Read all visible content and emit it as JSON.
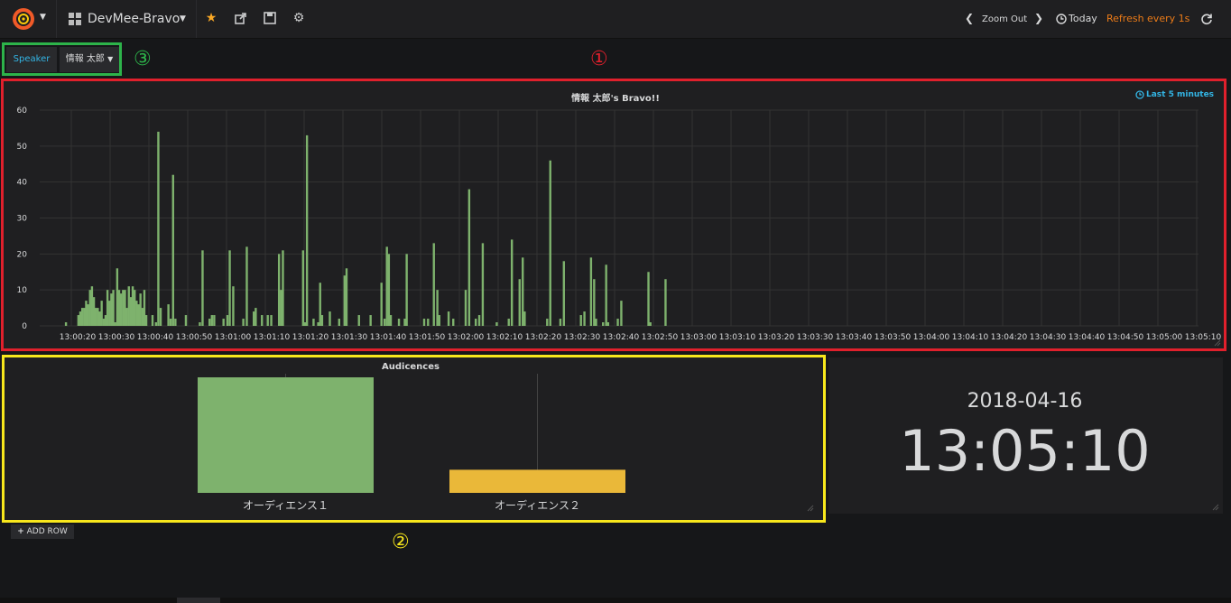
{
  "topbar": {
    "dashboard_title": "DevMee-Bravo",
    "zoom_out": "Zoom Out",
    "time_label": "Today",
    "refresh_label": "Refresh every 1s"
  },
  "variables": {
    "label": "Speaker",
    "value": "情報 太郎"
  },
  "annotations": [
    "①",
    "②",
    "③"
  ],
  "graph_panel": {
    "title": "情報 太郎's Bravo!!",
    "time_info": "Last 5 minutes",
    "chart_data": {
      "type": "bar",
      "title": "情報 太郎's Bravo!!",
      "ylim": [
        0,
        60
      ],
      "y_ticks": [
        "0",
        "10",
        "20",
        "30",
        "40",
        "50",
        "60"
      ],
      "x_ticks": [
        "13:00:20",
        "13:00:30",
        "13:00:40",
        "13:00:50",
        "13:01:00",
        "13:01:10",
        "13:01:20",
        "13:01:30",
        "13:01:40",
        "13:01:50",
        "13:02:00",
        "13:02:10",
        "13:02:20",
        "13:02:30",
        "13:02:40",
        "13:02:50",
        "13:03:00",
        "13:03:10",
        "13:03:20",
        "13:03:30",
        "13:03:40",
        "13:03:50",
        "13:04:00",
        "13:04:10",
        "13:04:20",
        "13:04:30",
        "13:04:40",
        "13:04:50",
        "13:05:00",
        "13:05:10"
      ],
      "x_start_label": "13:00:20",
      "color": "#7eb26d",
      "bars": [
        {
          "t": -3,
          "v": 1
        },
        {
          "t": 0.2,
          "v": 3
        },
        {
          "t": 0.7,
          "v": 4
        },
        {
          "t": 1.2,
          "v": 5
        },
        {
          "t": 1.7,
          "v": 5
        },
        {
          "t": 2.2,
          "v": 7
        },
        {
          "t": 2.7,
          "v": 6
        },
        {
          "t": 3.2,
          "v": 10
        },
        {
          "t": 3.7,
          "v": 11
        },
        {
          "t": 4.2,
          "v": 8
        },
        {
          "t": 4.7,
          "v": 5
        },
        {
          "t": 5.2,
          "v": 5
        },
        {
          "t": 5.7,
          "v": 4
        },
        {
          "t": 6.2,
          "v": 7
        },
        {
          "t": 6.7,
          "v": 2
        },
        {
          "t": 7.2,
          "v": 3
        },
        {
          "t": 7.7,
          "v": 10
        },
        {
          "t": 8.2,
          "v": 7
        },
        {
          "t": 8.7,
          "v": 9
        },
        {
          "t": 9.2,
          "v": 10
        },
        {
          "t": 9.7,
          "v": 1
        },
        {
          "t": 10.2,
          "v": 16
        },
        {
          "t": 10.7,
          "v": 10
        },
        {
          "t": 11.2,
          "v": 9
        },
        {
          "t": 11.7,
          "v": 10
        },
        {
          "t": 12.2,
          "v": 10
        },
        {
          "t": 12.7,
          "v": 5
        },
        {
          "t": 13.2,
          "v": 11
        },
        {
          "t": 13.7,
          "v": 8
        },
        {
          "t": 14.2,
          "v": 11
        },
        {
          "t": 14.7,
          "v": 10
        },
        {
          "t": 15.2,
          "v": 7
        },
        {
          "t": 15.7,
          "v": 6
        },
        {
          "t": 16.2,
          "v": 9
        },
        {
          "t": 16.7,
          "v": 5
        },
        {
          "t": 17.2,
          "v": 10
        },
        {
          "t": 17.7,
          "v": 3
        },
        {
          "t": 19.3,
          "v": 3
        },
        {
          "t": 20.2,
          "v": 1
        },
        {
          "t": 20.8,
          "v": 54
        },
        {
          "t": 21.4,
          "v": 5
        },
        {
          "t": 23.4,
          "v": 6
        },
        {
          "t": 24.0,
          "v": 2
        },
        {
          "t": 24.6,
          "v": 42
        },
        {
          "t": 25.2,
          "v": 2
        },
        {
          "t": 27.9,
          "v": 3
        },
        {
          "t": 31.5,
          "v": 1
        },
        {
          "t": 32.2,
          "v": 21
        },
        {
          "t": 34.0,
          "v": 2
        },
        {
          "t": 34.6,
          "v": 3
        },
        {
          "t": 35.2,
          "v": 3
        },
        {
          "t": 37.6,
          "v": 2
        },
        {
          "t": 38.6,
          "v": 3
        },
        {
          "t": 39.2,
          "v": 21
        },
        {
          "t": 40.1,
          "v": 11
        },
        {
          "t": 42.7,
          "v": 2
        },
        {
          "t": 43.6,
          "v": 22
        },
        {
          "t": 45.4,
          "v": 4
        },
        {
          "t": 45.9,
          "v": 5
        },
        {
          "t": 47.5,
          "v": 3
        },
        {
          "t": 49.0,
          "v": 3
        },
        {
          "t": 49.9,
          "v": 3
        },
        {
          "t": 51.9,
          "v": 20
        },
        {
          "t": 52.4,
          "v": 10
        },
        {
          "t": 52.9,
          "v": 21
        },
        {
          "t": 58.1,
          "v": 21
        },
        {
          "t": 58.6,
          "v": 1
        },
        {
          "t": 59.1,
          "v": 53
        },
        {
          "t": 60.8,
          "v": 2
        },
        {
          "t": 62.0,
          "v": 1
        },
        {
          "t": 62.5,
          "v": 12
        },
        {
          "t": 63.0,
          "v": 3
        },
        {
          "t": 65.0,
          "v": 4
        },
        {
          "t": 67.4,
          "v": 2
        },
        {
          "t": 68.8,
          "v": 14
        },
        {
          "t": 69.3,
          "v": 16
        },
        {
          "t": 72.5,
          "v": 3
        },
        {
          "t": 75.5,
          "v": 3
        },
        {
          "t": 78.3,
          "v": 12
        },
        {
          "t": 79.1,
          "v": 2
        },
        {
          "t": 79.7,
          "v": 22
        },
        {
          "t": 80.2,
          "v": 20
        },
        {
          "t": 80.7,
          "v": 3
        },
        {
          "t": 82.8,
          "v": 2
        },
        {
          "t": 84.3,
          "v": 2
        },
        {
          "t": 84.8,
          "v": 20
        },
        {
          "t": 89.3,
          "v": 2
        },
        {
          "t": 90.3,
          "v": 2
        },
        {
          "t": 91.8,
          "v": 23
        },
        {
          "t": 92.7,
          "v": 10
        },
        {
          "t": 93.2,
          "v": 3
        },
        {
          "t": 95.6,
          "v": 4
        },
        {
          "t": 96.8,
          "v": 2
        },
        {
          "t": 100.0,
          "v": 10
        },
        {
          "t": 100.9,
          "v": 38
        },
        {
          "t": 102.6,
          "v": 2
        },
        {
          "t": 103.5,
          "v": 3
        },
        {
          "t": 104.4,
          "v": 23
        },
        {
          "t": 108.0,
          "v": 1
        },
        {
          "t": 111.1,
          "v": 2
        },
        {
          "t": 111.9,
          "v": 24
        },
        {
          "t": 113.9,
          "v": 13
        },
        {
          "t": 114.7,
          "v": 19
        },
        {
          "t": 115.2,
          "v": 4
        },
        {
          "t": 121.0,
          "v": 2
        },
        {
          "t": 121.8,
          "v": 46
        },
        {
          "t": 124.4,
          "v": 2
        },
        {
          "t": 125.3,
          "v": 18
        },
        {
          "t": 129.7,
          "v": 3
        },
        {
          "t": 130.6,
          "v": 4
        },
        {
          "t": 132.3,
          "v": 19
        },
        {
          "t": 133.1,
          "v": 13
        },
        {
          "t": 133.6,
          "v": 2
        },
        {
          "t": 135.4,
          "v": 1
        },
        {
          "t": 136.2,
          "v": 17
        },
        {
          "t": 136.7,
          "v": 1
        },
        {
          "t": 139.2,
          "v": 2
        },
        {
          "t": 140.1,
          "v": 7
        },
        {
          "t": 147.1,
          "v": 15
        },
        {
          "t": 147.6,
          "v": 1
        },
        {
          "t": 151.5,
          "v": 13
        }
      ]
    }
  },
  "audience_panel": {
    "title": "Audicences",
    "chart_data": {
      "type": "bar",
      "title": "Audicences",
      "categories": [
        "オーディエンス１",
        "オーディエンス２"
      ],
      "values": [
        100,
        20
      ],
      "ylim": [
        0,
        100
      ],
      "colors": [
        "#7eb26d",
        "#eab839"
      ]
    }
  },
  "clock_panel": {
    "date": "2018-04-16",
    "time": "13:05:10"
  },
  "footer": {
    "add_row": "ADD ROW"
  }
}
